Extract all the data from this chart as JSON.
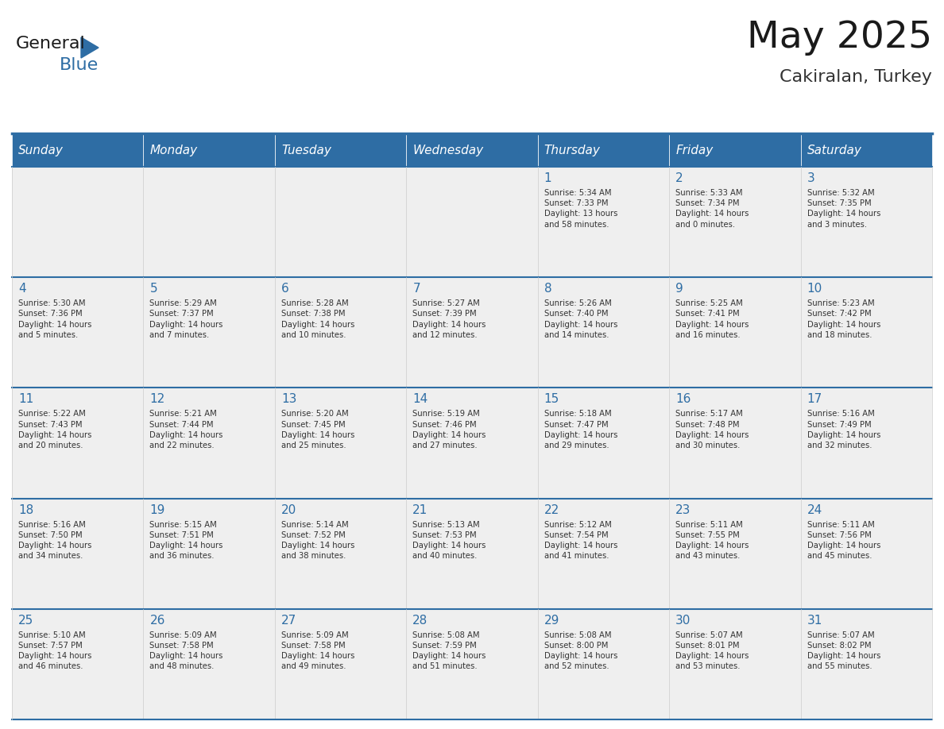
{
  "title": "May 2025",
  "subtitle": "Cakiralan, Turkey",
  "header_bg": "#2E6DA4",
  "header_text_color": "#FFFFFF",
  "cell_bg_even": "#F0F4F8",
  "cell_bg_odd": "#FFFFFF",
  "day_number_color": "#2E6DA4",
  "text_color": "#333333",
  "line_color": "#2E6DA4",
  "days_of_week": [
    "Sunday",
    "Monday",
    "Tuesday",
    "Wednesday",
    "Thursday",
    "Friday",
    "Saturday"
  ],
  "weeks": [
    [
      {
        "day": "",
        "info": ""
      },
      {
        "day": "",
        "info": ""
      },
      {
        "day": "",
        "info": ""
      },
      {
        "day": "",
        "info": ""
      },
      {
        "day": "1",
        "info": "Sunrise: 5:34 AM\nSunset: 7:33 PM\nDaylight: 13 hours\nand 58 minutes."
      },
      {
        "day": "2",
        "info": "Sunrise: 5:33 AM\nSunset: 7:34 PM\nDaylight: 14 hours\nand 0 minutes."
      },
      {
        "day": "3",
        "info": "Sunrise: 5:32 AM\nSunset: 7:35 PM\nDaylight: 14 hours\nand 3 minutes."
      }
    ],
    [
      {
        "day": "4",
        "info": "Sunrise: 5:30 AM\nSunset: 7:36 PM\nDaylight: 14 hours\nand 5 minutes."
      },
      {
        "day": "5",
        "info": "Sunrise: 5:29 AM\nSunset: 7:37 PM\nDaylight: 14 hours\nand 7 minutes."
      },
      {
        "day": "6",
        "info": "Sunrise: 5:28 AM\nSunset: 7:38 PM\nDaylight: 14 hours\nand 10 minutes."
      },
      {
        "day": "7",
        "info": "Sunrise: 5:27 AM\nSunset: 7:39 PM\nDaylight: 14 hours\nand 12 minutes."
      },
      {
        "day": "8",
        "info": "Sunrise: 5:26 AM\nSunset: 7:40 PM\nDaylight: 14 hours\nand 14 minutes."
      },
      {
        "day": "9",
        "info": "Sunrise: 5:25 AM\nSunset: 7:41 PM\nDaylight: 14 hours\nand 16 minutes."
      },
      {
        "day": "10",
        "info": "Sunrise: 5:23 AM\nSunset: 7:42 PM\nDaylight: 14 hours\nand 18 minutes."
      }
    ],
    [
      {
        "day": "11",
        "info": "Sunrise: 5:22 AM\nSunset: 7:43 PM\nDaylight: 14 hours\nand 20 minutes."
      },
      {
        "day": "12",
        "info": "Sunrise: 5:21 AM\nSunset: 7:44 PM\nDaylight: 14 hours\nand 22 minutes."
      },
      {
        "day": "13",
        "info": "Sunrise: 5:20 AM\nSunset: 7:45 PM\nDaylight: 14 hours\nand 25 minutes."
      },
      {
        "day": "14",
        "info": "Sunrise: 5:19 AM\nSunset: 7:46 PM\nDaylight: 14 hours\nand 27 minutes."
      },
      {
        "day": "15",
        "info": "Sunrise: 5:18 AM\nSunset: 7:47 PM\nDaylight: 14 hours\nand 29 minutes."
      },
      {
        "day": "16",
        "info": "Sunrise: 5:17 AM\nSunset: 7:48 PM\nDaylight: 14 hours\nand 30 minutes."
      },
      {
        "day": "17",
        "info": "Sunrise: 5:16 AM\nSunset: 7:49 PM\nDaylight: 14 hours\nand 32 minutes."
      }
    ],
    [
      {
        "day": "18",
        "info": "Sunrise: 5:16 AM\nSunset: 7:50 PM\nDaylight: 14 hours\nand 34 minutes."
      },
      {
        "day": "19",
        "info": "Sunrise: 5:15 AM\nSunset: 7:51 PM\nDaylight: 14 hours\nand 36 minutes."
      },
      {
        "day": "20",
        "info": "Sunrise: 5:14 AM\nSunset: 7:52 PM\nDaylight: 14 hours\nand 38 minutes."
      },
      {
        "day": "21",
        "info": "Sunrise: 5:13 AM\nSunset: 7:53 PM\nDaylight: 14 hours\nand 40 minutes."
      },
      {
        "day": "22",
        "info": "Sunrise: 5:12 AM\nSunset: 7:54 PM\nDaylight: 14 hours\nand 41 minutes."
      },
      {
        "day": "23",
        "info": "Sunrise: 5:11 AM\nSunset: 7:55 PM\nDaylight: 14 hours\nand 43 minutes."
      },
      {
        "day": "24",
        "info": "Sunrise: 5:11 AM\nSunset: 7:56 PM\nDaylight: 14 hours\nand 45 minutes."
      }
    ],
    [
      {
        "day": "25",
        "info": "Sunrise: 5:10 AM\nSunset: 7:57 PM\nDaylight: 14 hours\nand 46 minutes."
      },
      {
        "day": "26",
        "info": "Sunrise: 5:09 AM\nSunset: 7:58 PM\nDaylight: 14 hours\nand 48 minutes."
      },
      {
        "day": "27",
        "info": "Sunrise: 5:09 AM\nSunset: 7:58 PM\nDaylight: 14 hours\nand 49 minutes."
      },
      {
        "day": "28",
        "info": "Sunrise: 5:08 AM\nSunset: 7:59 PM\nDaylight: 14 hours\nand 51 minutes."
      },
      {
        "day": "29",
        "info": "Sunrise: 5:08 AM\nSunset: 8:00 PM\nDaylight: 14 hours\nand 52 minutes."
      },
      {
        "day": "30",
        "info": "Sunrise: 5:07 AM\nSunset: 8:01 PM\nDaylight: 14 hours\nand 53 minutes."
      },
      {
        "day": "31",
        "info": "Sunrise: 5:07 AM\nSunset: 8:02 PM\nDaylight: 14 hours\nand 55 minutes."
      }
    ]
  ],
  "logo_text_general": "General",
  "logo_text_blue": "Blue",
  "logo_color_general": "#1a1a1a",
  "logo_color_blue": "#2E6DA4",
  "logo_triangle_color": "#2E6DA4"
}
